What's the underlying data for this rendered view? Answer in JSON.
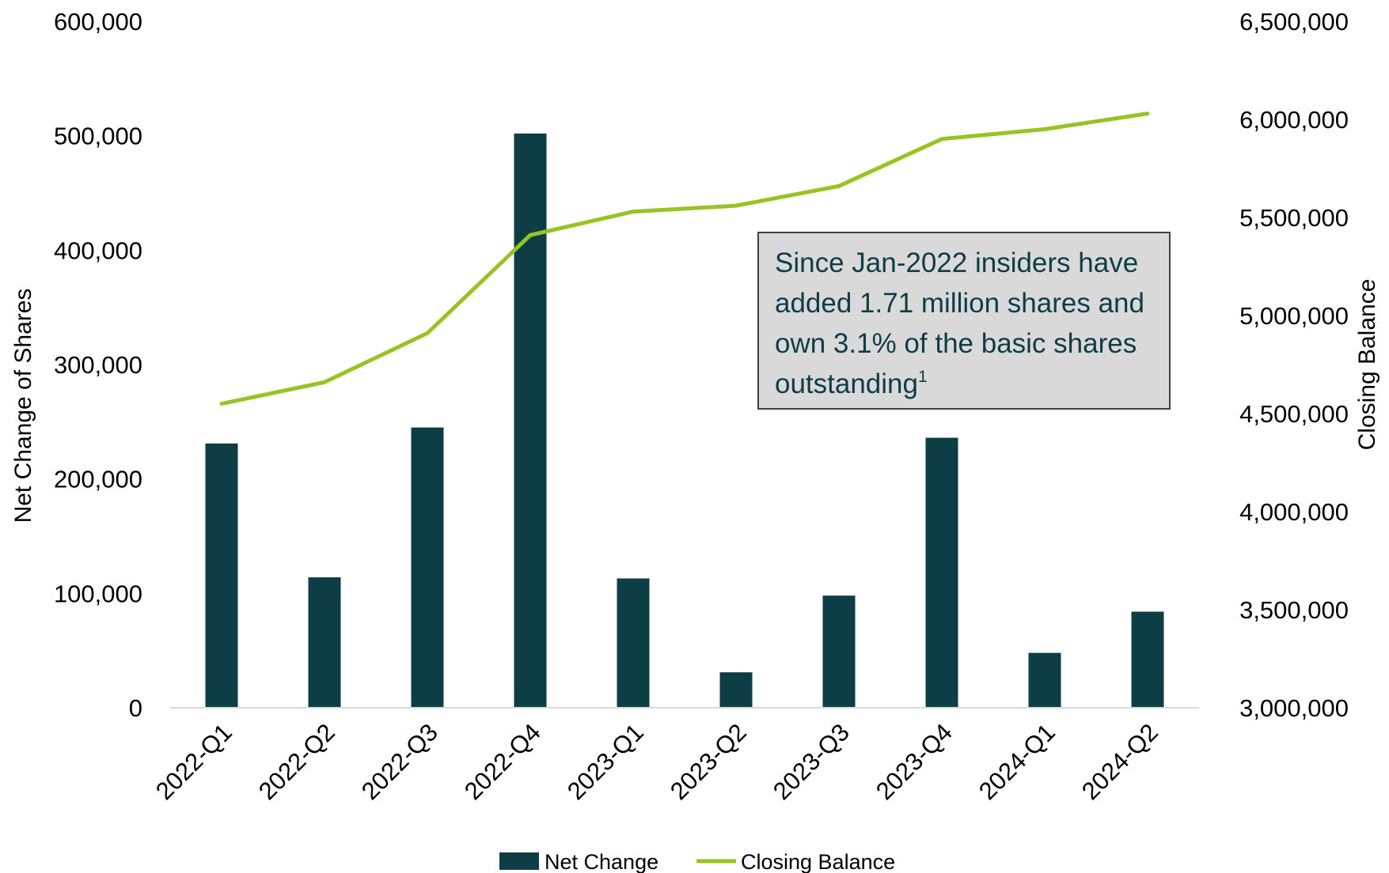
{
  "chart_data": {
    "type": "bar",
    "categories": [
      "2022-Q1",
      "2022-Q2",
      "2022-Q3",
      "2022-Q4",
      "2023-Q1",
      "2023-Q2",
      "2023-Q3",
      "2023-Q4",
      "2024-Q1",
      "2024-Q2"
    ],
    "series": [
      {
        "name": "Net Change",
        "type": "bar",
        "axis": "left",
        "color": "#0d3d45",
        "values": [
          231000,
          114000,
          245000,
          502000,
          113000,
          31000,
          98000,
          236000,
          48000,
          84000
        ]
      },
      {
        "name": "Closing Balance",
        "type": "line",
        "axis": "right",
        "color": "#97c423",
        "values": [
          4550000,
          4660000,
          4910000,
          5410000,
          5530000,
          5560000,
          5660000,
          5900000,
          5950000,
          6030000
        ]
      }
    ],
    "ylabel": "Net Change of Shares",
    "y2label": "Closing Balance",
    "ylim": [
      0,
      600000
    ],
    "y2lim": [
      3000000,
      6500000
    ],
    "yticks": [
      "0",
      "100,000",
      "200,000",
      "300,000",
      "400,000",
      "500,000",
      "600,000"
    ],
    "y2ticks": [
      "3,000,000",
      "3,500,000",
      "4,000,000",
      "4,500,000",
      "5,000,000",
      "5,500,000",
      "6,000,000",
      "6,500,000"
    ],
    "legend": "bottom",
    "grid": false
  },
  "annotation": {
    "text": "Since Jan-2022 insiders have added 1.71 million shares and own 3.1% of the basic shares outstanding",
    "footnote": "1"
  }
}
